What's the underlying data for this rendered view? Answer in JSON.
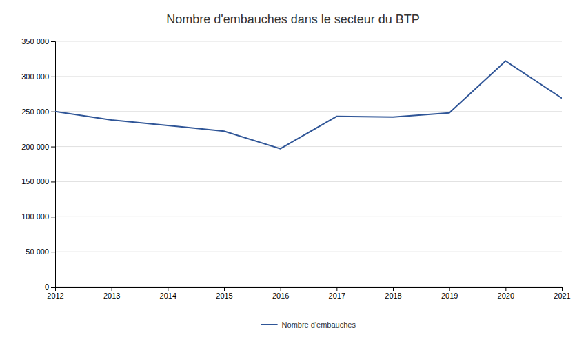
{
  "chart_data": {
    "type": "line",
    "title": "Nombre d'embauches dans le secteur du BTP",
    "x": [
      2012,
      2013,
      2014,
      2015,
      2016,
      2017,
      2018,
      2019,
      2020,
      2021
    ],
    "series": [
      {
        "name": "Nombre d'embauches",
        "color": "#2F5597",
        "values": [
          250000,
          238000,
          230000,
          222000,
          197000,
          243000,
          242000,
          248000,
          322000,
          269000
        ]
      }
    ],
    "xlim": [
      2012,
      2021
    ],
    "xticks": [
      2012,
      2013,
      2014,
      2015,
      2016,
      2017,
      2018,
      2019,
      2020,
      2021
    ],
    "ylim": [
      0,
      350000
    ],
    "yticks": [
      0,
      {
        "value": 50000,
        "label": "50 000"
      },
      {
        "value": 100000,
        "label": "100 000"
      },
      {
        "value": 150000,
        "label": "150 000"
      },
      {
        "value": 200000,
        "label": "200 000"
      },
      {
        "value": 250000,
        "label": "250 000"
      },
      {
        "value": 300000,
        "label": "300 000"
      },
      {
        "value": 350000,
        "label": "350 000"
      }
    ],
    "grid": true,
    "legend": "bottom"
  }
}
